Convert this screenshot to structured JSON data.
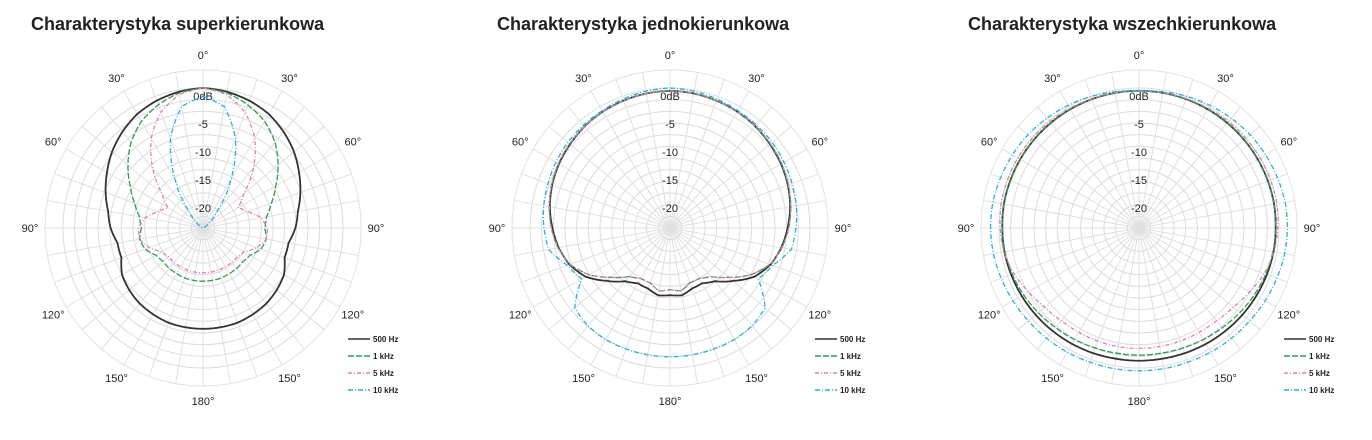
{
  "chart_data": [
    {
      "type": "polar-line",
      "title": "Charakterystyka superkierunkowa",
      "angle_labels": [
        "0°",
        "30°",
        "60°",
        "90°",
        "120°",
        "150°",
        "180°",
        "150°",
        "120°",
        "90°",
        "60°",
        "30°"
      ],
      "ring_labels": [
        "0dB",
        "-5",
        "-10",
        "-15",
        "-20"
      ],
      "rlim": [
        -25,
        0
      ],
      "grid": true,
      "legend_position": "bottom-right",
      "angles_deg": [
        0,
        10,
        20,
        30,
        40,
        50,
        60,
        70,
        80,
        90,
        100,
        110,
        120,
        130,
        140,
        150,
        160,
        170,
        180
      ],
      "series": [
        {
          "name": "500 Hz",
          "color": "#333333",
          "dash": "",
          "values": [
            0,
            -0.3,
            -0.8,
            -1.5,
            -2.6,
            -3.8,
            -5.2,
            -6.5,
            -7.8,
            -8.5,
            -9.5,
            -9.5,
            -8.3,
            -7.8,
            -7.4,
            -7.2,
            -7.0,
            -7.0,
            -7.0
          ]
        },
        {
          "name": "1 kHz",
          "color": "#2e9a55",
          "dash": "6,2",
          "values": [
            0,
            -0.5,
            -1.6,
            -3.0,
            -5.0,
            -7.5,
            -10.0,
            -12.0,
            -13.5,
            -14.0,
            -13.5,
            -14.0,
            -15.3,
            -15.7,
            -15.6,
            -15.6,
            -15.5,
            -15.5,
            -15.5
          ]
        },
        {
          "name": "5 kHz",
          "color": "#e27fa5",
          "dash": "4,2,1,2",
          "values": [
            0,
            -0.8,
            -3.0,
            -6.5,
            -11.0,
            -15.5,
            -17.8,
            -16.5,
            -14.5,
            -13.5,
            -13.5,
            -14.8,
            -16.5,
            -17.0,
            -17.0,
            -17.0,
            -17.0,
            -17.0,
            -17.0
          ]
        },
        {
          "name": "10 kHz",
          "color": "#29b0dc",
          "dash": "5,2,1,2",
          "values": [
            -1.5,
            -3.0,
            -8.0,
            -15.0,
            -21.0,
            -23.5,
            -24.5,
            -25,
            -25,
            -25,
            -25,
            -25,
            -25,
            -25,
            -25,
            -25,
            -25,
            -25,
            -25
          ]
        }
      ]
    },
    {
      "type": "polar-line",
      "title": "Charakterystyka jednokierunkowa",
      "angle_labels": [
        "0°",
        "30°",
        "60°",
        "90°",
        "120°",
        "150°",
        "180°",
        "150°",
        "120°",
        "90°",
        "60°",
        "30°"
      ],
      "ring_labels": [
        "0dB",
        "-5",
        "-10",
        "-15",
        "-20"
      ],
      "rlim": [
        -25,
        0
      ],
      "grid": true,
      "legend_position": "bottom-right",
      "angles_deg": [
        0,
        10,
        20,
        30,
        40,
        50,
        60,
        70,
        80,
        90,
        100,
        110,
        120,
        130,
        140,
        150,
        160,
        170,
        180
      ],
      "series": [
        {
          "name": "500 Hz",
          "color": "#333333",
          "dash": "",
          "values": [
            -0.5,
            -0.6,
            -0.8,
            -1.0,
            -1.3,
            -1.7,
            -2.1,
            -2.6,
            -3.2,
            -4.0,
            -4.8,
            -5.9,
            -7.6,
            -10.3,
            -12.6,
            -13.6,
            -13.5,
            -12.8,
            -13.0
          ]
        },
        {
          "name": "1 kHz",
          "color": "#2e9a55",
          "dash": "6,2",
          "values": [
            -0.5,
            -0.6,
            -0.8,
            -1.0,
            -1.3,
            -1.6,
            -2.0,
            -2.5,
            -3.1,
            -3.8,
            -4.7,
            -6.0,
            -8.3,
            -11.3,
            -13.7,
            -14.6,
            -14.6,
            -13.6,
            -14.0
          ]
        },
        {
          "name": "5 kHz",
          "color": "#e27fa5",
          "dash": "4,2,1,2",
          "values": [
            -0.5,
            -0.6,
            -0.8,
            -1.0,
            -1.3,
            -1.6,
            -2.0,
            -2.5,
            -3.1,
            -3.8,
            -4.7,
            -6.0,
            -8.3,
            -11.3,
            -13.7,
            -14.6,
            -14.6,
            -13.6,
            -14.0
          ]
        },
        {
          "name": "10 kHz",
          "color": "#29b0dc",
          "dash": "5,2,1,2",
          "values": [
            0,
            -0.2,
            -0.5,
            -0.8,
            -1.0,
            -1.2,
            -1.5,
            -1.8,
            -2.1,
            -2.5,
            -3.0,
            -5.5,
            -6.8,
            -2.8,
            -2.2,
            -2.0,
            -2.0,
            -2.0,
            -2.0
          ]
        }
      ]
    },
    {
      "type": "polar-line",
      "title": "Charakterystyka wszechkierunkowa",
      "angle_labels": [
        "0°",
        "30°",
        "60°",
        "90°",
        "120°",
        "150°",
        "180°",
        "150°",
        "120°",
        "90°",
        "60°",
        "30°"
      ],
      "ring_labels": [
        "0dB",
        "-5",
        "-10",
        "-15",
        "-20"
      ],
      "rlim": [
        -25,
        0
      ],
      "grid": true,
      "legend_position": "bottom-right",
      "angles_deg": [
        0,
        10,
        20,
        30,
        40,
        50,
        60,
        70,
        80,
        90,
        100,
        110,
        120,
        130,
        140,
        150,
        160,
        170,
        180
      ],
      "series": [
        {
          "name": "500 Hz",
          "color": "#333333",
          "dash": "",
          "values": [
            -0.5,
            -0.5,
            -0.5,
            -0.5,
            -0.5,
            -0.5,
            -0.5,
            -0.5,
            -0.5,
            -0.6,
            -0.6,
            -0.7,
            -0.8,
            -0.9,
            -1.0,
            -1.1,
            -1.2,
            -1.3,
            -1.3
          ]
        },
        {
          "name": "1 kHz",
          "color": "#2e9a55",
          "dash": "6,2",
          "values": [
            -0.5,
            -0.5,
            -0.5,
            -0.5,
            -0.5,
            -0.5,
            -0.5,
            -0.5,
            -0.5,
            -0.6,
            -0.7,
            -0.9,
            -1.2,
            -1.5,
            -1.8,
            -2.0,
            -2.2,
            -2.3,
            -2.3
          ]
        },
        {
          "name": "5 kHz",
          "color": "#e27fa5",
          "dash": "4,2,1,2",
          "values": [
            -0.5,
            -0.5,
            -0.4,
            -0.3,
            -0.2,
            -0.1,
            0,
            0,
            0,
            -0.2,
            -0.5,
            -1.2,
            -2.2,
            -3.0,
            -3.4,
            -3.5,
            -3.5,
            -3.5,
            -3.5
          ]
        },
        {
          "name": "10 kHz",
          "color": "#29b0dc",
          "dash": "5,2,1,2",
          "values": [
            -0.5,
            -0.3,
            0,
            0.3,
            0.6,
            0.9,
            1.1,
            1.3,
            1.5,
            1.5,
            1.4,
            1.2,
            1.0,
            0.8,
            0.7,
            0.6,
            0.5,
            0.5,
            0.5
          ]
        }
      ]
    }
  ]
}
